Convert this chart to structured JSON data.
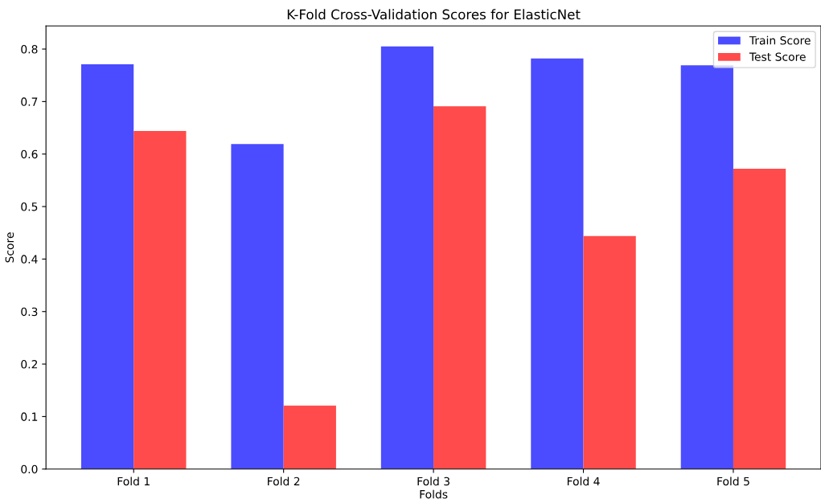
{
  "chart_data": {
    "type": "bar",
    "title": "K-Fold Cross-Validation Scores for ElasticNet",
    "xlabel": "Folds",
    "ylabel": "Score",
    "categories": [
      "Fold 1",
      "Fold 2",
      "Fold 3",
      "Fold 4",
      "Fold 5"
    ],
    "series": [
      {
        "name": "Train Score",
        "color": "#4b4bff",
        "values": [
          0.771,
          0.619,
          0.805,
          0.782,
          0.769
        ]
      },
      {
        "name": "Test Score",
        "color": "#ff4b4b",
        "values": [
          0.644,
          0.121,
          0.691,
          0.444,
          0.572
        ]
      }
    ],
    "ylim": [
      0,
      0.844
    ],
    "yticks": [
      {
        "value": 0,
        "label": "0.0"
      },
      0.1,
      0.2,
      0.3,
      0.4,
      0.5,
      0.6,
      0.7,
      0.8
    ],
    "legend": "top right",
    "grid": false
  }
}
